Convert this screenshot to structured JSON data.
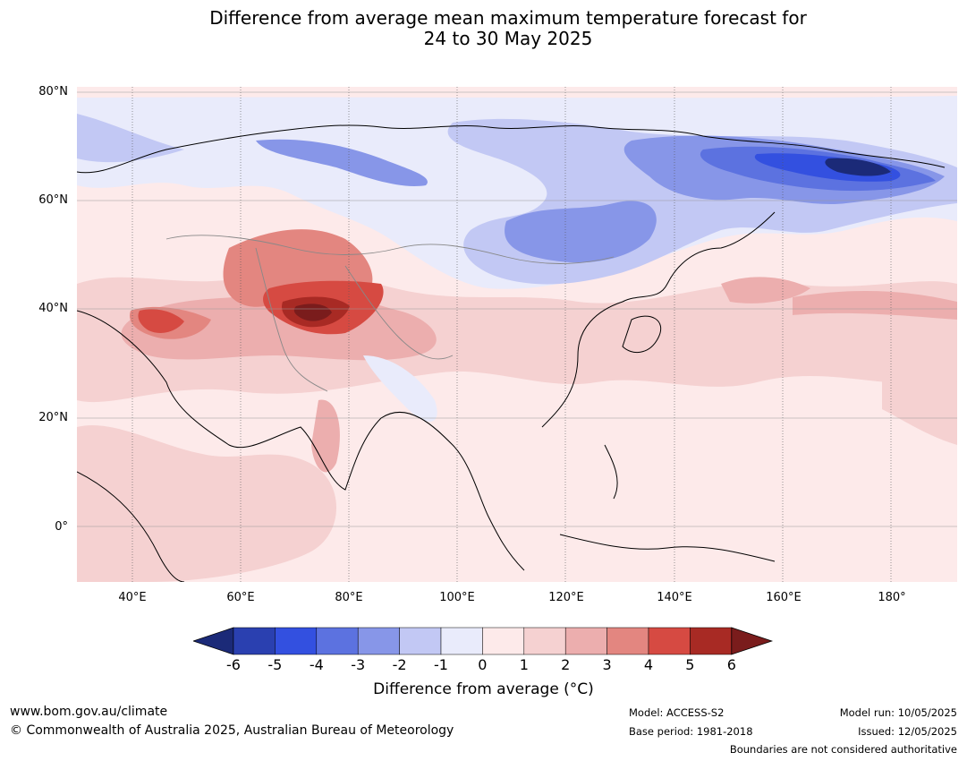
{
  "title_line1": "Difference from average mean maximum temperature forecast for",
  "title_line2": "24 to 30 May 2025",
  "lat_labels": [
    "80°N",
    "60°N",
    "40°N",
    "20°N",
    "0°"
  ],
  "lon_labels": [
    "40°E",
    "60°E",
    "80°E",
    "100°E",
    "120°E",
    "140°E",
    "160°E",
    "180°"
  ],
  "legend": {
    "ticks": [
      "-6",
      "-5",
      "-4",
      "-3",
      "-2",
      "-1",
      "0",
      "1",
      "2",
      "3",
      "4",
      "5",
      "6"
    ],
    "colors": [
      "#1b2a78",
      "#2a40b0",
      "#3350e0",
      "#5c72e0",
      "#8796e8",
      "#c2c8f4",
      "#e9ebfb",
      "#fdeaea",
      "#f5d1d1",
      "#ecaeae",
      "#e38680",
      "#d64a42",
      "#a82a24",
      "#7a1c1c"
    ],
    "label": "Difference from average (°C)"
  },
  "footer": {
    "website": "www.bom.gov.au/climate",
    "copyright": "© Commonwealth of Australia 2025, Australian Bureau of Meteorology",
    "model": "Model: ACCESS-S2",
    "base_period": "Base period: 1981-2018",
    "model_run": "Model run: 10/05/2025",
    "issued": "Issued: 12/05/2025",
    "disclaimer": "Boundaries are not considered authoritative"
  }
}
